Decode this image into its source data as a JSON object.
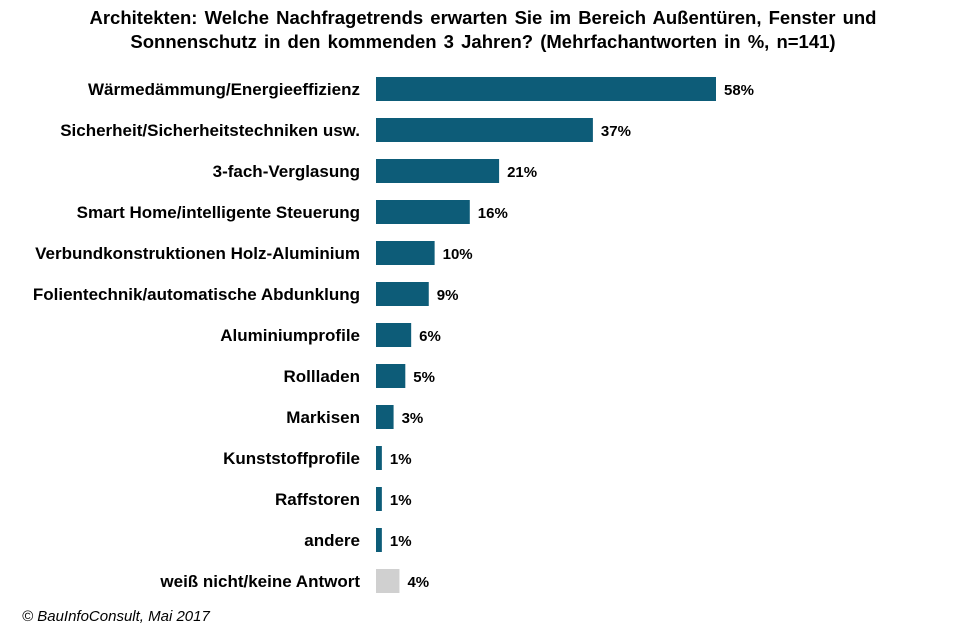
{
  "chart_data": {
    "type": "bar",
    "orientation": "horizontal",
    "title_line1": "Architekten: Welche Nachfragetrends erwarten Sie im Bereich Außentüren, Fenster und",
    "title_line2": "Sonnenschutz in den kommenden 3 Jahren? (Mehrfachantworten in %, n=141)",
    "categories": [
      "Wärmedämmung/Energieeffizienz",
      "Sicherheit/Sicherheitstechniken usw.",
      "3-fach-Verglasung",
      "Smart Home/intelligente Steuerung",
      "Verbundkonstruktionen Holz-Aluminium",
      "Folientechnik/automatische Abdunklung",
      "Aluminiumprofile",
      "Rollladen",
      "Markisen",
      "Kunststoffprofile",
      "Raffstoren",
      "andere",
      "weiß nicht/keine Antwort"
    ],
    "values": [
      58,
      37,
      21,
      16,
      10,
      9,
      6,
      5,
      3,
      1,
      1,
      1,
      4
    ],
    "value_labels": [
      "58%",
      "37%",
      "21%",
      "16%",
      "10%",
      "9%",
      "6%",
      "5%",
      "3%",
      "1%",
      "1%",
      "1%",
      "4%"
    ],
    "bar_colors": [
      "#0d5c78",
      "#0d5c78",
      "#0d5c78",
      "#0d5c78",
      "#0d5c78",
      "#0d5c78",
      "#0d5c78",
      "#0d5c78",
      "#0d5c78",
      "#0d5c78",
      "#0d5c78",
      "#0d5c78",
      "#d0d0d0"
    ],
    "xlim": [
      0,
      60
    ],
    "grid": false,
    "legend": "none"
  },
  "source_note": "© BauInfoConsult, Mai 2017"
}
